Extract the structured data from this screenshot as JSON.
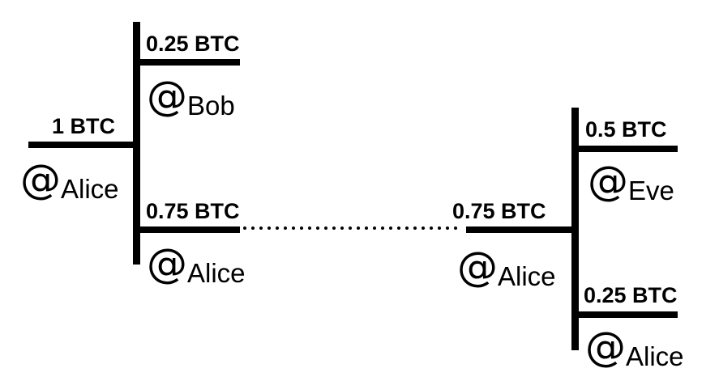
{
  "transactions": {
    "left": {
      "input": {
        "amount": "1 BTC",
        "at": "@",
        "owner": "Alice"
      },
      "outputs": [
        {
          "amount": "0.25 BTC",
          "at": "@",
          "owner": "Bob"
        },
        {
          "amount": "0.75 BTC",
          "at": "@",
          "owner": "Alice"
        }
      ]
    },
    "right": {
      "input": {
        "amount": "0.75 BTC",
        "at": "@",
        "owner": "Alice"
      },
      "outputs": [
        {
          "amount": "0.5 BTC",
          "at": "@",
          "owner": "Eve"
        },
        {
          "amount": "0.25 BTC",
          "at": "@",
          "owner": "Alice"
        }
      ]
    }
  },
  "colors": {
    "ink": "#000000",
    "background": "#ffffff"
  }
}
